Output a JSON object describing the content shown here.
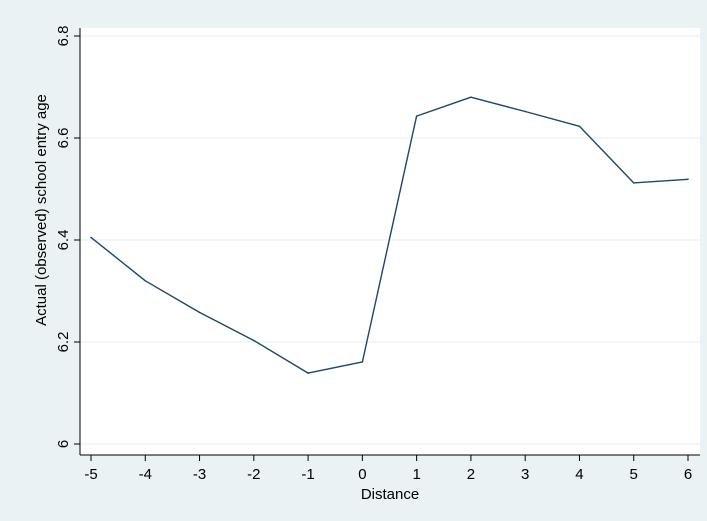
{
  "chart_data": {
    "type": "line",
    "xlabel": "Distance",
    "ylabel": "Actual (observed) school entry age",
    "x": [
      -5,
      -4,
      -3,
      -2,
      -1,
      0,
      1,
      2,
      3,
      4,
      5,
      6
    ],
    "series": [
      {
        "values": [
          6.405,
          6.32,
          6.258,
          6.203,
          6.139,
          6.161,
          6.643,
          6.68,
          6.652,
          6.623,
          6.512,
          6.519
        ]
      }
    ],
    "xticks": [
      "-5",
      "-4",
      "-3",
      "-2",
      "-1",
      "0",
      "1",
      "2",
      "3",
      "4",
      "5",
      "6"
    ],
    "yticks": [
      "6",
      "6.2",
      "6.4",
      "6.6",
      "6.8"
    ],
    "xlim": [
      -5,
      6
    ],
    "ylim": [
      6,
      6.8
    ],
    "grid": true,
    "colors": {
      "background": "#eaf2f3",
      "plot_area": "#ffffff",
      "line": "#1a476f",
      "grid": "#eaf2f3"
    }
  }
}
